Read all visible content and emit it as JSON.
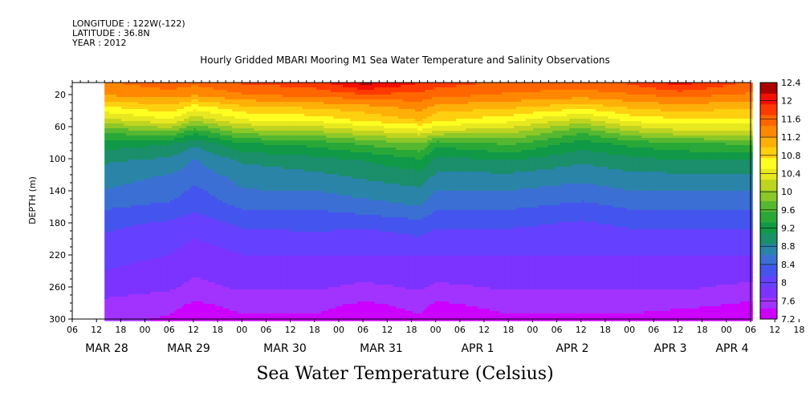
{
  "header": {
    "longitude": "LONGITUDE : 122W(-122)",
    "latitude": "LATITUDE : 36.8N",
    "year": "YEAR : 2012"
  },
  "colors": {
    "scale": [
      "#cc00ff",
      "#a233ff",
      "#7c33ff",
      "#6640ff",
      "#4455ee",
      "#3b6fd4",
      "#2a84a8",
      "#1a8f6a",
      "#109947",
      "#29a838",
      "#56b830",
      "#8cc828",
      "#bfd420",
      "#e8e820",
      "#ffff22",
      "#ffd010",
      "#ffb008",
      "#ff8800",
      "#ff6600",
      "#ff3a00",
      "#f21000",
      "#aa0000"
    ]
  },
  "chart_data": {
    "type": "heatmap",
    "title": "Hourly Gridded MBARI Mooring M1 Sea Water Temperature and Salinity Observations",
    "subtitle": "Sea Water Temperature (Celsius)",
    "ylabel": "DEPTH (m)",
    "xlabel": "",
    "yticks": [
      "20",
      "60",
      "100",
      "140",
      "180",
      "220",
      "260",
      "300"
    ],
    "ylim": [
      300,
      5
    ],
    "xticks": [
      "06",
      "12",
      "18",
      "00",
      "06",
      "12",
      "18",
      "00",
      "06",
      "12",
      "18",
      "00",
      "06",
      "12",
      "18",
      "00",
      "06",
      "12",
      "18",
      "00",
      "06",
      "12",
      "18",
      "00",
      "06",
      "12",
      "18",
      "00",
      "06",
      "12",
      "18",
      "00",
      "06"
    ],
    "day_labels": [
      "MAR 28",
      "MAR 29",
      "MAR 30",
      "MAR 31",
      "APR  1",
      "APR  2",
      "APR  3",
      "APR  4"
    ],
    "time_range": [
      "2012-03-28 06:00",
      "2012-04-04 06:00"
    ],
    "data_start": "2012-03-28 14:00",
    "colorbar": {
      "ticks": [
        "12.4",
        "12",
        "11.6",
        "11.2",
        "10.8",
        "10.4",
        "10",
        "9.6",
        "9.2",
        "8.8",
        "8.4",
        "8",
        "7.6",
        "7.2"
      ],
      "min": 7.2,
      "max": 12.4,
      "step": 0.2
    },
    "depths": [
      5,
      20,
      35,
      50,
      65,
      80,
      100,
      120,
      140,
      160,
      180,
      200,
      220,
      240,
      260,
      280,
      300
    ],
    "profile_times": [
      "2012-03-28 14:00",
      "2012-03-29 06:00",
      "2012-03-29 12:00",
      "2012-03-30 00:00",
      "2012-03-30 18:00",
      "2012-03-31 06:00",
      "2012-03-31 20:00",
      "2012-04-01 00:00",
      "2012-04-01 18:00",
      "2012-04-02 12:00",
      "2012-04-03 00:00",
      "2012-04-03 12:00",
      "2012-04-04 06:00"
    ],
    "profiles": [
      [
        11.4,
        11.2,
        10.7,
        10.2,
        9.6,
        9.2,
        8.9,
        8.7,
        8.6,
        8.4,
        8.2,
        8.1,
        8.0,
        7.9,
        7.8,
        7.6,
        7.5
      ],
      [
        11.6,
        11.3,
        10.9,
        10.5,
        9.8,
        9.1,
        8.8,
        8.6,
        8.5,
        8.3,
        8.1,
        8.0,
        7.9,
        7.8,
        7.7,
        7.5,
        7.4
      ],
      [
        11.5,
        11.2,
        10.6,
        10.1,
        9.4,
        8.9,
        8.6,
        8.5,
        8.3,
        8.2,
        8.0,
        7.9,
        7.8,
        7.7,
        7.6,
        7.4,
        7.3
      ],
      [
        11.7,
        11.4,
        10.9,
        10.5,
        9.9,
        9.3,
        8.9,
        8.7,
        8.6,
        8.4,
        8.2,
        8.0,
        7.9,
        7.8,
        7.7,
        7.5,
        7.4
      ],
      [
        11.8,
        11.5,
        11.0,
        10.6,
        10.0,
        9.4,
        9.0,
        8.8,
        8.6,
        8.4,
        8.2,
        8.1,
        7.9,
        7.8,
        7.7,
        7.5,
        7.4
      ],
      [
        12.2,
        11.6,
        11.1,
        10.8,
        10.2,
        9.6,
        9.1,
        8.9,
        8.7,
        8.5,
        8.2,
        8.0,
        7.9,
        7.8,
        7.6,
        7.4,
        7.3
      ],
      [
        11.9,
        11.6,
        11.3,
        11.0,
        10.4,
        9.8,
        9.3,
        9.0,
        8.8,
        8.6,
        8.3,
        8.1,
        7.9,
        7.8,
        7.7,
        7.5,
        7.4
      ],
      [
        11.8,
        11.5,
        11.1,
        10.8,
        10.2,
        9.4,
        9.0,
        8.8,
        8.6,
        8.4,
        8.2,
        8.0,
        7.9,
        7.8,
        7.6,
        7.4,
        7.3
      ],
      [
        11.6,
        11.4,
        11.0,
        10.6,
        10.1,
        9.6,
        9.1,
        8.8,
        8.6,
        8.4,
        8.2,
        8.0,
        7.9,
        7.8,
        7.7,
        7.5,
        7.4
      ],
      [
        11.6,
        11.3,
        10.8,
        10.2,
        9.6,
        9.2,
        8.9,
        8.7,
        8.5,
        8.3,
        8.1,
        8.0,
        7.9,
        7.8,
        7.7,
        7.5,
        7.4
      ],
      [
        11.7,
        11.4,
        11.0,
        10.6,
        10.0,
        9.4,
        9.0,
        8.8,
        8.6,
        8.4,
        8.2,
        8.0,
        7.9,
        7.8,
        7.7,
        7.5,
        7.4
      ],
      [
        12.0,
        11.5,
        11.1,
        10.7,
        10.2,
        9.5,
        9.1,
        8.8,
        8.6,
        8.4,
        8.2,
        8.0,
        7.9,
        7.8,
        7.7,
        7.5,
        7.3
      ],
      [
        11.6,
        11.4,
        11.0,
        10.7,
        10.2,
        9.6,
        9.1,
        8.8,
        8.6,
        8.4,
        8.2,
        8.0,
        7.9,
        7.8,
        7.6,
        7.4,
        7.3
      ]
    ]
  }
}
